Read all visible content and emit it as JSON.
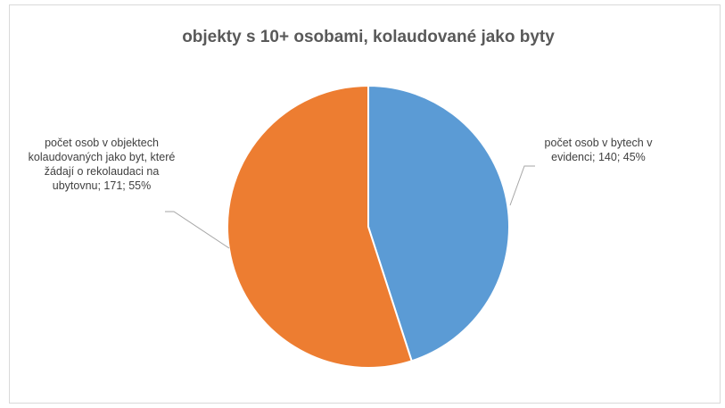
{
  "chart_data": {
    "type": "pie",
    "title": "objekty s 10+ osobami, kolaudované jako byty",
    "values": [
      140,
      171
    ],
    "value_labels": [
      "počet osob v bytech v evidenci; 140; 45%",
      "počet osob v objektech kolaudovaných jako byt, které žádají o rekolaudaci na ubytovnu; 171; 55%"
    ],
    "colors": [
      "#5b9bd5",
      "#ed7d31"
    ]
  }
}
